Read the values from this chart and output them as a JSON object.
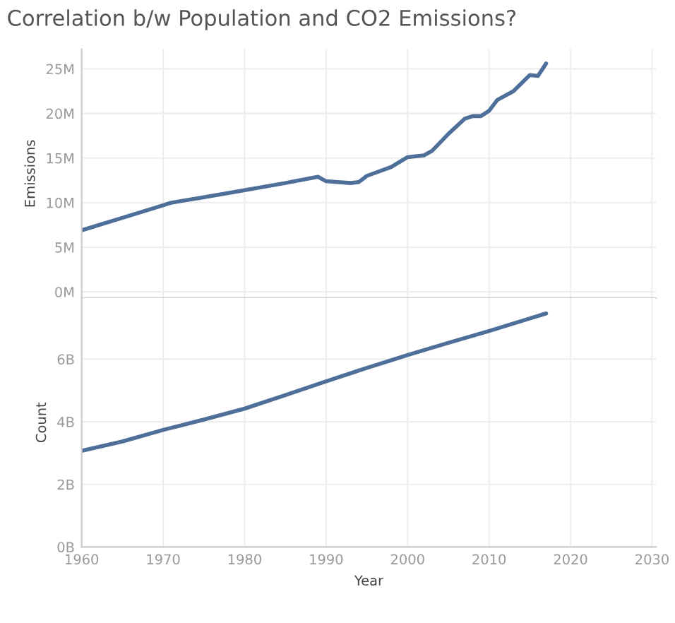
{
  "chart_data": [
    {
      "type": "line",
      "title": "Correlation b/w Population and CO2 Emissions?",
      "ylabel": "Emissions",
      "x": [
        1960,
        1965,
        1970,
        1971,
        1975,
        1980,
        1985,
        1989,
        1990,
        1993,
        1994,
        1995,
        1998,
        2000,
        2002,
        2003,
        2005,
        2007,
        2008,
        2009,
        2010,
        2011,
        2013,
        2015,
        2016,
        2017
      ],
      "series": [
        {
          "color": "#4e6f9a",
          "values": [
            6.9,
            8.3,
            9.7,
            10.0,
            10.6,
            11.4,
            12.2,
            12.9,
            12.4,
            12.2,
            12.3,
            13.0,
            14.0,
            15.1,
            15.3,
            15.8,
            17.7,
            19.4,
            19.7,
            19.7,
            20.3,
            21.5,
            22.5,
            24.3,
            24.2,
            25.6
          ]
        }
      ],
      "xlim": [
        1960,
        2030.5
      ],
      "ylim": [
        -0.7,
        27.2
      ],
      "yticks": [
        {
          "value": 0,
          "label": "0M"
        },
        {
          "value": 5,
          "label": "5M"
        },
        {
          "value": 10,
          "label": "10M"
        },
        {
          "value": 15,
          "label": "15M"
        },
        {
          "value": 20,
          "label": "20M"
        },
        {
          "value": 25,
          "label": "25M"
        }
      ],
      "xticks": [
        1960,
        1970,
        1980,
        1990,
        2000,
        2010,
        2020,
        2030
      ],
      "tick_labels": "y",
      "grid": true,
      "marker": "none",
      "line_style": "solid"
    },
    {
      "type": "line",
      "ylabel": "Count",
      "xlabel": "Year",
      "x": [
        1960,
        1965,
        1970,
        1975,
        1980,
        1985,
        1990,
        1995,
        2000,
        2005,
        2010,
        2017
      ],
      "series": [
        {
          "color": "#4e6f9a",
          "values": [
            3.07,
            3.37,
            3.74,
            4.07,
            4.42,
            4.85,
            5.29,
            5.72,
            6.13,
            6.52,
            6.9,
            7.46
          ]
        }
      ],
      "xlim": [
        1960,
        2030.5
      ],
      "ylim": [
        0,
        7.95
      ],
      "yticks": [
        {
          "value": 0,
          "label": "0B"
        },
        {
          "value": 2,
          "label": "2B"
        },
        {
          "value": 4,
          "label": "4B"
        },
        {
          "value": 6,
          "label": "6B"
        }
      ],
      "xticks": [
        1960,
        1970,
        1980,
        1990,
        2000,
        2010,
        2020,
        2030
      ],
      "grid": true,
      "marker": "none",
      "line_style": "solid"
    }
  ]
}
